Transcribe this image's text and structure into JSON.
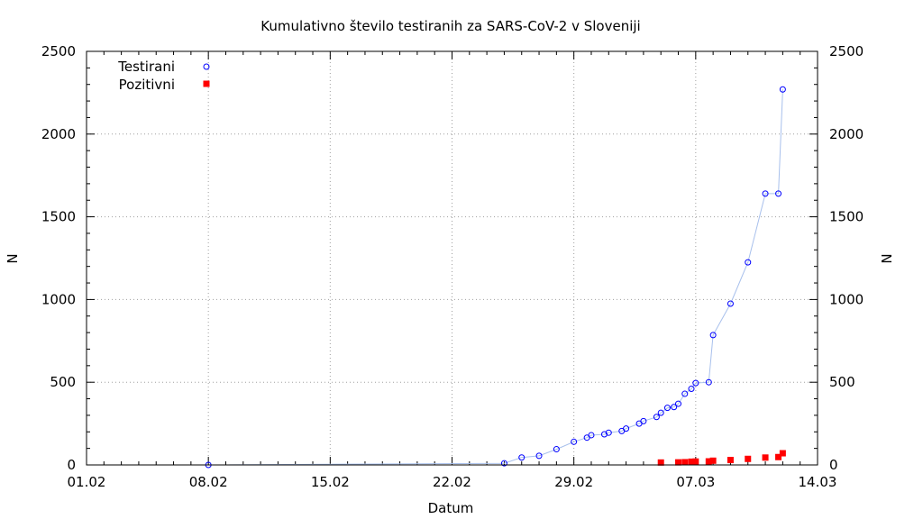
{
  "chart_data": {
    "type": "scatter",
    "title": "Kumulativno število testiranih za SARS-CoV-2 v Sloveniji",
    "xlabel": "Datum",
    "ylabel": "N",
    "y2label": "N",
    "x_range": [
      "2020-02-01",
      "2020-03-14"
    ],
    "xlim_dates": [
      "01.02",
      "14.03"
    ],
    "xticks": [
      "01.02",
      "08.02",
      "15.02",
      "22.02",
      "29.02",
      "07.03",
      "14.03"
    ],
    "ylim": [
      0,
      2500
    ],
    "yticks": [
      0,
      500,
      1000,
      1500,
      2000,
      2500
    ],
    "grid": true,
    "legend_position": "top-left",
    "colors": {
      "testirani": "#0000ff",
      "line": "#a8c0ec",
      "pozitivni": "#ff0000"
    },
    "series": [
      {
        "name": "Testirani",
        "marker": "circle",
        "connected": true,
        "points": [
          {
            "x": "2020-02-08",
            "y": 0
          },
          {
            "x": "2020-02-25",
            "y": 10
          },
          {
            "x": "2020-02-26",
            "y": 45
          },
          {
            "x": "2020-02-27",
            "y": 55
          },
          {
            "x": "2020-02-28",
            "y": 95
          },
          {
            "x": "2020-02-29",
            "y": 140
          },
          {
            "x": "2020-02-29",
            "y": 165
          },
          {
            "x": "2020-03-01",
            "y": 180
          },
          {
            "x": "2020-03-01",
            "y": 185
          },
          {
            "x": "2020-03-02",
            "y": 195
          },
          {
            "x": "2020-03-02",
            "y": 205
          },
          {
            "x": "2020-03-03",
            "y": 220
          },
          {
            "x": "2020-03-03",
            "y": 250
          },
          {
            "x": "2020-03-04",
            "y": 265
          },
          {
            "x": "2020-03-04",
            "y": 290
          },
          {
            "x": "2020-03-05",
            "y": 315
          },
          {
            "x": "2020-03-05",
            "y": 345
          },
          {
            "x": "2020-03-05",
            "y": 350
          },
          {
            "x": "2020-03-06",
            "y": 370
          },
          {
            "x": "2020-03-06",
            "y": 430
          },
          {
            "x": "2020-03-06",
            "y": 460
          },
          {
            "x": "2020-03-07",
            "y": 495
          },
          {
            "x": "2020-03-07",
            "y": 500
          },
          {
            "x": "2020-03-08",
            "y": 785
          },
          {
            "x": "2020-03-09",
            "y": 975
          },
          {
            "x": "2020-03-10",
            "y": 1225
          },
          {
            "x": "2020-03-11",
            "y": 1640
          },
          {
            "x": "2020-03-11",
            "y": 1640
          },
          {
            "x": "2020-03-12",
            "y": 2270
          }
        ]
      },
      {
        "name": "Pozitivni",
        "marker": "square",
        "connected": false,
        "points": [
          {
            "x": "2020-03-05",
            "y": 1
          },
          {
            "x": "2020-03-06",
            "y": 2
          },
          {
            "x": "2020-03-06",
            "y": 3
          },
          {
            "x": "2020-03-06",
            "y": 6
          },
          {
            "x": "2020-03-07",
            "y": 7
          },
          {
            "x": "2020-03-07",
            "y": 8
          },
          {
            "x": "2020-03-08",
            "y": 12
          },
          {
            "x": "2020-03-09",
            "y": 16
          },
          {
            "x": "2020-03-10",
            "y": 23
          },
          {
            "x": "2020-03-11",
            "y": 31
          },
          {
            "x": "2020-03-11",
            "y": 34
          },
          {
            "x": "2020-03-12",
            "y": 57
          }
        ]
      }
    ]
  }
}
